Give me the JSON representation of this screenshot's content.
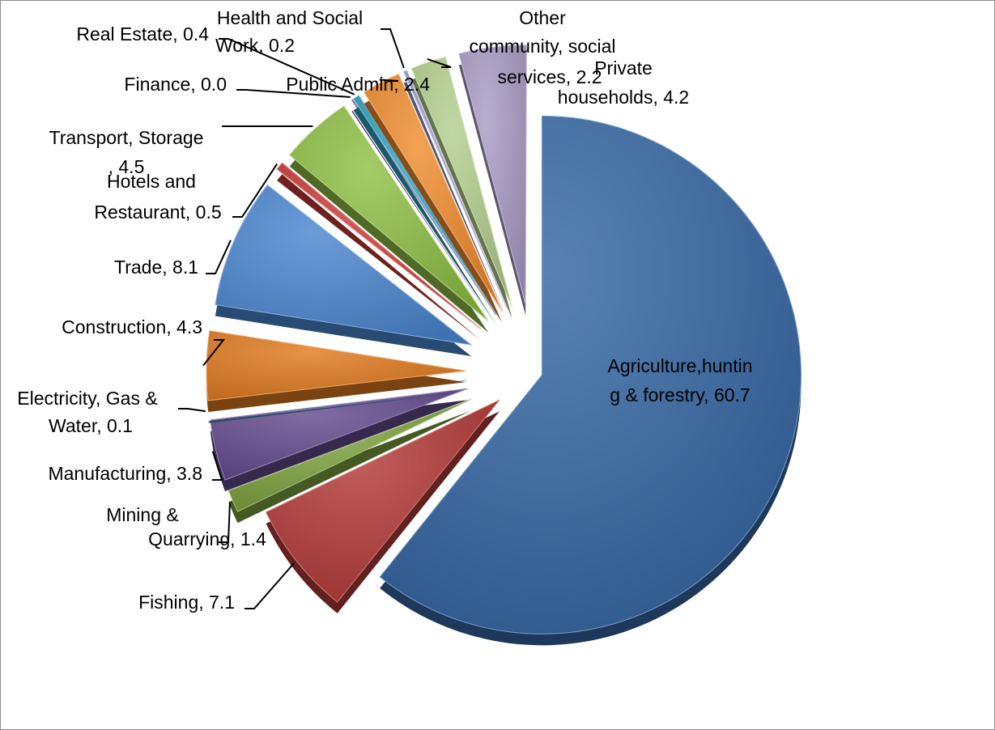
{
  "chart_data": {
    "type": "pie",
    "exploded": true,
    "title": "",
    "slices": [
      {
        "name": "Agriculture,hunting & forestry",
        "value": 60.7,
        "label_lines": [
          "Agriculture,huntin",
          "g & forestry, 60.7"
        ],
        "color": "#3566a3"
      },
      {
        "name": "Fishing",
        "value": 7.1,
        "label_lines": [
          "Fishing, 7.1"
        ],
        "color": "#b33a37"
      },
      {
        "name": "Mining & Quarrying",
        "value": 1.4,
        "label_lines": [
          "Mining &",
          "Quarrying, 1.4"
        ],
        "color": "#7da23d"
      },
      {
        "name": "Manufacturing",
        "value": 3.8,
        "label_lines": [
          "Manufacturing, 3.8"
        ],
        "color": "#644a8e"
      },
      {
        "name": "Electricity, Gas & Water",
        "value": 0.1,
        "label_lines": [
          "Electricity, Gas &",
          "Water, 0.1"
        ],
        "color": "#2a8fa6"
      },
      {
        "name": "Construction",
        "value": 4.3,
        "label_lines": [
          "Construction, 4.3"
        ],
        "color": "#e07a1f"
      },
      {
        "name": "Trade",
        "value": 8.1,
        "label_lines": [
          "Trade, 8.1"
        ],
        "color": "#4a86cf"
      },
      {
        "name": "Hotels and Restaurant",
        "value": 0.5,
        "label_lines": [
          "Hotels and",
          "Restaurant, 0.5"
        ],
        "color": "#c83a36"
      },
      {
        "name": "Transport, Storage",
        "value": 4.5,
        "label_lines": [
          "Transport, Storage",
          ", 4.5"
        ],
        "color": "#8fbf45"
      },
      {
        "name": "Finance",
        "value": 0.0,
        "label_lines": [
          "Finance, 0.0"
        ],
        "color": "#5c3f87"
      },
      {
        "name": "Real Estate",
        "value": 0.4,
        "label_lines": [
          "Real Estate, 0.4"
        ],
        "color": "#2fa2c0"
      },
      {
        "name": "Public Admin",
        "value": 2.4,
        "label_lines": [
          "Public Admin, 2.4"
        ],
        "color": "#f08c2e"
      },
      {
        "name": "Health and Social Work",
        "value": 0.2,
        "label_lines": [
          "Health and Social",
          "Work, 0.2"
        ],
        "color": "#9a9ccc"
      },
      {
        "name": "Other community, social services",
        "value": 2.2,
        "label_lines": [
          "Other",
          "community, social",
          "services, 2.2"
        ],
        "color": "#b5cf8e"
      },
      {
        "name": "Private households",
        "value": 4.2,
        "label_lines": [
          "Private",
          "households, 4.2"
        ],
        "color": "#a99cc6"
      }
    ]
  }
}
